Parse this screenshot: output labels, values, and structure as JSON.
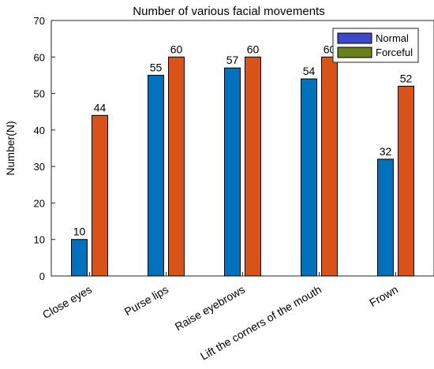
{
  "chart_data": {
    "type": "bar",
    "title": "Number of various facial movements",
    "xlabel": "",
    "ylabel": "Number(N)",
    "ylim": [
      0,
      70
    ],
    "yticks": [
      0,
      10,
      20,
      30,
      40,
      50,
      60,
      70
    ],
    "categories": [
      "Close eyes",
      "Purse lips",
      "Raise eyebrows",
      "Lift the corners of the mouth",
      "Frown"
    ],
    "series": [
      {
        "name": "Normal",
        "values": [
          10,
          55,
          57,
          54,
          32
        ],
        "color": "#0072BD"
      },
      {
        "name": "Forceful",
        "values": [
          44,
          60,
          60,
          60,
          52
        ],
        "color": "#D95319"
      }
    ],
    "legend_position": "top-right",
    "legend_swatch_colors": {
      "Normal": "#3F48CC",
      "Forceful": "#6B7F1A"
    },
    "grid": false
  }
}
